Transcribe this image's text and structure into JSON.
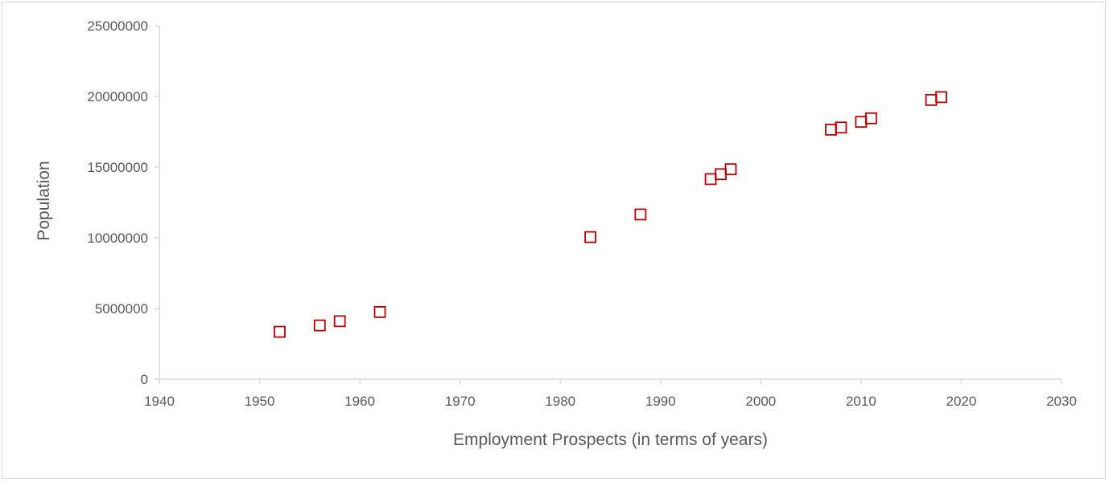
{
  "chart_data": {
    "type": "scatter",
    "xlabel": "Employment Prospects (in terms of years)",
    "ylabel": "Population",
    "xlim": [
      1940,
      2030
    ],
    "ylim": [
      0,
      25000000
    ],
    "x_ticks": [
      "1940",
      "1950",
      "1960",
      "1970",
      "1980",
      "1990",
      "2000",
      "2010",
      "2020",
      "2030"
    ],
    "y_ticks": [
      "0",
      "5000000",
      "10000000",
      "15000000",
      "20000000",
      "25000000"
    ],
    "grid": false,
    "legend": "none",
    "marker": "hollow-square",
    "marker_color": "#c00000",
    "points": [
      {
        "x": 1952,
        "y": 3350000
      },
      {
        "x": 1956,
        "y": 3800000
      },
      {
        "x": 1958,
        "y": 4100000
      },
      {
        "x": 1962,
        "y": 4750000
      },
      {
        "x": 1983,
        "y": 10050000
      },
      {
        "x": 1988,
        "y": 11650000
      },
      {
        "x": 1995,
        "y": 14150000
      },
      {
        "x": 1996,
        "y": 14500000
      },
      {
        "x": 1997,
        "y": 14850000
      },
      {
        "x": 2007,
        "y": 17650000
      },
      {
        "x": 2008,
        "y": 17800000
      },
      {
        "x": 2010,
        "y": 18200000
      },
      {
        "x": 2011,
        "y": 18450000
      },
      {
        "x": 2017,
        "y": 19750000
      },
      {
        "x": 2018,
        "y": 19950000
      }
    ]
  }
}
